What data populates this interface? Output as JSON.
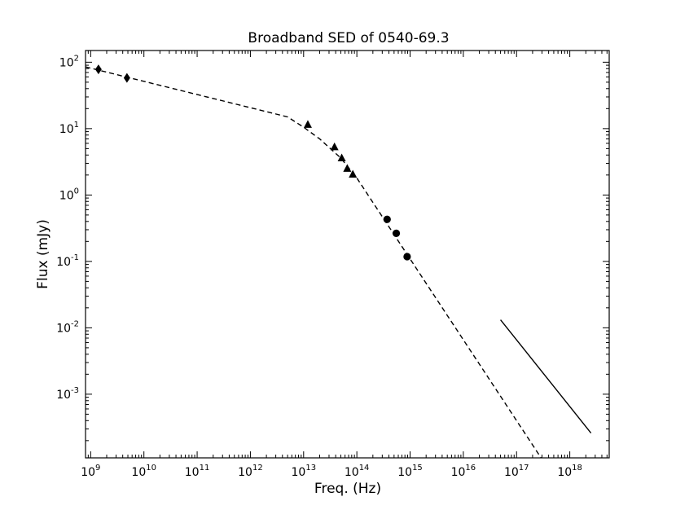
{
  "chart_data": {
    "type": "scatter",
    "title": "Broadband SED of 0540-69.3",
    "xlabel": "Freq. (Hz)",
    "ylabel": "Flux (mJy)",
    "xscale": "log",
    "yscale": "log",
    "xlim": [
      800000000.0,
      5.5e+18
    ],
    "ylim": [
      0.00011,
      150
    ],
    "grid": false,
    "legend": "none",
    "x_ticks": [
      {
        "base": "10",
        "exp": "9",
        "value": 1000000000.0
      },
      {
        "base": "10",
        "exp": "10",
        "value": 10000000000.0
      },
      {
        "base": "10",
        "exp": "11",
        "value": 100000000000.0
      },
      {
        "base": "10",
        "exp": "12",
        "value": 1000000000000.0
      },
      {
        "base": "10",
        "exp": "13",
        "value": 10000000000000.0
      },
      {
        "base": "10",
        "exp": "14",
        "value": 100000000000000.0
      },
      {
        "base": "10",
        "exp": "15",
        "value": 1000000000000000.0
      },
      {
        "base": "10",
        "exp": "16",
        "value": 1e+16
      },
      {
        "base": "10",
        "exp": "17",
        "value": 1e+17
      },
      {
        "base": "10",
        "exp": "18",
        "value": 1e+18
      }
    ],
    "y_ticks": [
      {
        "base": "10",
        "exp": "2",
        "value": 100
      },
      {
        "base": "10",
        "exp": "1",
        "value": 10
      },
      {
        "base": "10",
        "exp": "0",
        "value": 1
      },
      {
        "base": "10",
        "exp": "-1",
        "value": 0.1
      },
      {
        "base": "10",
        "exp": "-2",
        "value": 0.01
      },
      {
        "base": "10",
        "exp": "-3",
        "value": 0.001
      }
    ],
    "series": [
      {
        "marker": "diamond",
        "color": "#000000",
        "points": [
          {
            "x": 1400000000.0,
            "y": 78
          },
          {
            "x": 4800000000.0,
            "y": 58
          }
        ]
      },
      {
        "marker": "triangle",
        "color": "#000000",
        "points": [
          {
            "x": 12000000000000.0,
            "y": 11.5
          },
          {
            "x": 38000000000000.0,
            "y": 5.3
          },
          {
            "x": 52000000000000.0,
            "y": 3.6
          },
          {
            "x": 66000000000000.0,
            "y": 2.5
          },
          {
            "x": 84000000000000.0,
            "y": 2.05
          }
        ]
      },
      {
        "marker": "circle",
        "color": "#000000",
        "points": [
          {
            "x": 370000000000000.0,
            "y": 0.43
          },
          {
            "x": 550000000000000.0,
            "y": 0.265
          },
          {
            "x": 880000000000000.0,
            "y": 0.118
          }
        ]
      }
    ],
    "lines": [
      {
        "style": "dashed",
        "color": "#000000",
        "points": [
          {
            "x": 800000000.0,
            "y": 85
          },
          {
            "x": 5000000000000.0,
            "y": 15
          },
          {
            "x": 10000000000000.0,
            "y": 10.5
          },
          {
            "x": 20000000000000.0,
            "y": 7.0
          },
          {
            "x": 50000000000000.0,
            "y": 3.6
          },
          {
            "x": 100000000000000.0,
            "y": 1.8
          },
          {
            "x": 3e+17,
            "y": 0.000105
          }
        ]
      },
      {
        "style": "solid",
        "color": "#000000",
        "points": [
          {
            "x": 5e+16,
            "y": 0.0132
          },
          {
            "x": 2.5e+18,
            "y": 0.00026
          }
        ]
      }
    ]
  }
}
